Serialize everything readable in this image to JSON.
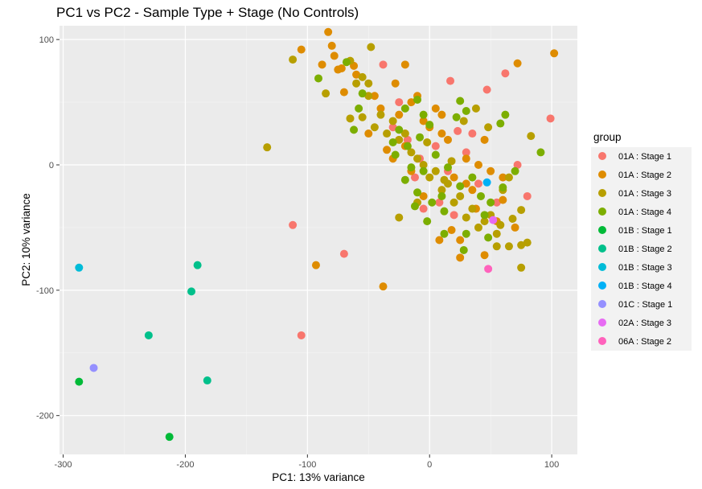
{
  "chart_data": {
    "type": "scatter",
    "title": "PC1 vs PC2 - Sample Type + Stage (No Controls)",
    "xlabel": "PC1: 13% variance",
    "ylabel": "PC2: 10% variance",
    "xlim": [
      -303,
      121
    ],
    "ylim": [
      -231,
      111
    ],
    "x_ticks": [
      -300,
      -200,
      -100,
      0,
      100
    ],
    "y_ticks": [
      -200,
      -100,
      0,
      100
    ],
    "x_tick_labels": [
      "-300",
      "-200",
      "-100",
      "0",
      "100"
    ],
    "y_tick_labels": [
      "-200",
      "-100",
      "0",
      "100"
    ],
    "grid": true,
    "legend_title": "group",
    "legend_position": "right",
    "series": [
      {
        "name": "01A : Stage 1",
        "color": "#F8766D",
        "points": [
          [
            -112,
            -48
          ],
          [
            -70,
            -71
          ],
          [
            -105,
            -136
          ],
          [
            -38,
            80
          ],
          [
            17,
            67
          ],
          [
            99,
            37
          ],
          [
            47,
            60
          ],
          [
            62,
            73
          ],
          [
            72,
            0
          ],
          [
            80,
            -25
          ],
          [
            23,
            27
          ],
          [
            -18,
            20
          ],
          [
            -8,
            5
          ],
          [
            30,
            10
          ],
          [
            8,
            -30
          ],
          [
            -25,
            50
          ],
          [
            40,
            -15
          ],
          [
            15,
            -5
          ],
          [
            -5,
            -35
          ],
          [
            55,
            -30
          ],
          [
            -30,
            30
          ],
          [
            35,
            25
          ],
          [
            5,
            15
          ],
          [
            -12,
            -10
          ],
          [
            20,
            -40
          ]
        ]
      },
      {
        "name": "01A : Stage 2",
        "color": "#DE8C00",
        "points": [
          [
            -83,
            106
          ],
          [
            -105,
            92
          ],
          [
            -80,
            95
          ],
          [
            -78,
            87
          ],
          [
            -75,
            76
          ],
          [
            -72,
            77
          ],
          [
            -88,
            80
          ],
          [
            -62,
            79
          ],
          [
            -20,
            80
          ],
          [
            -28,
            65
          ],
          [
            -60,
            72
          ],
          [
            -70,
            58
          ],
          [
            -45,
            55
          ],
          [
            -40,
            45
          ],
          [
            -25,
            40
          ],
          [
            -15,
            50
          ],
          [
            -10,
            55
          ],
          [
            5,
            45
          ],
          [
            10,
            40
          ],
          [
            -5,
            35
          ],
          [
            0,
            30
          ],
          [
            10,
            25
          ],
          [
            15,
            20
          ],
          [
            -20,
            15
          ],
          [
            -35,
            12
          ],
          [
            -15,
            -5
          ],
          [
            20,
            -10
          ],
          [
            30,
            -15
          ],
          [
            40,
            0
          ],
          [
            50,
            -5
          ],
          [
            60,
            -10
          ],
          [
            45,
            20
          ],
          [
            72,
            81
          ],
          [
            102,
            89
          ],
          [
            55,
            -45
          ],
          [
            70,
            -50
          ],
          [
            -38,
            -97
          ],
          [
            -93,
            -80
          ],
          [
            45,
            -72
          ],
          [
            25,
            -74
          ],
          [
            -50,
            25
          ],
          [
            -30,
            5
          ],
          [
            60,
            -28
          ],
          [
            25,
            -60
          ],
          [
            35,
            -20
          ],
          [
            8,
            -60
          ],
          [
            18,
            -52
          ],
          [
            -5,
            -25
          ],
          [
            30,
            5
          ],
          [
            38,
            -35
          ]
        ]
      },
      {
        "name": "01A : Stage 3",
        "color": "#B79F00",
        "points": [
          [
            -112,
            84
          ],
          [
            -48,
            94
          ],
          [
            -133,
            14
          ],
          [
            -55,
            70
          ],
          [
            -50,
            65
          ],
          [
            -65,
            83
          ],
          [
            -85,
            57
          ],
          [
            -65,
            37
          ],
          [
            -55,
            38
          ],
          [
            -45,
            30
          ],
          [
            -35,
            25
          ],
          [
            -25,
            20
          ],
          [
            -15,
            10
          ],
          [
            -5,
            0
          ],
          [
            5,
            -5
          ],
          [
            15,
            -15
          ],
          [
            25,
            -25
          ],
          [
            35,
            -35
          ],
          [
            45,
            -45
          ],
          [
            55,
            -55
          ],
          [
            65,
            -65
          ],
          [
            75,
            -64
          ],
          [
            80,
            -62
          ],
          [
            75,
            -82
          ],
          [
            75,
            -36
          ],
          [
            65,
            -10
          ],
          [
            60,
            -20
          ],
          [
            50,
            -40
          ],
          [
            40,
            -50
          ],
          [
            30,
            -42
          ],
          [
            20,
            -30
          ],
          [
            10,
            -20
          ],
          [
            0,
            -10
          ],
          [
            -10,
            5
          ],
          [
            -20,
            25
          ],
          [
            -30,
            35
          ],
          [
            -40,
            40
          ],
          [
            -50,
            55
          ],
          [
            -60,
            65
          ],
          [
            83,
            23
          ],
          [
            68,
            -43
          ],
          [
            55,
            -65
          ],
          [
            -25,
            -42
          ],
          [
            -10,
            -30
          ],
          [
            12,
            -12
          ],
          [
            28,
            35
          ],
          [
            38,
            45
          ],
          [
            48,
            30
          ],
          [
            -2,
            18
          ],
          [
            18,
            3
          ],
          [
            58,
            -48
          ]
        ]
      },
      {
        "name": "01A : Stage 4",
        "color": "#7CAE00",
        "points": [
          [
            -91,
            69
          ],
          [
            -68,
            82
          ],
          [
            -62,
            28
          ],
          [
            -58,
            45
          ],
          [
            -55,
            57
          ],
          [
            -20,
            45
          ],
          [
            -10,
            52
          ],
          [
            -5,
            40
          ],
          [
            0,
            32
          ],
          [
            22,
            38
          ],
          [
            25,
            51
          ],
          [
            30,
            43
          ],
          [
            62,
            40
          ],
          [
            58,
            33
          ],
          [
            91,
            10
          ],
          [
            50,
            -30
          ],
          [
            45,
            -40
          ],
          [
            30,
            -55
          ],
          [
            -10,
            -22
          ],
          [
            -5,
            -5
          ],
          [
            -15,
            -2
          ],
          [
            10,
            -25
          ],
          [
            -12,
            -33
          ],
          [
            -18,
            15
          ],
          [
            -8,
            22
          ],
          [
            -25,
            28
          ],
          [
            -30,
            18
          ],
          [
            12,
            -37
          ],
          [
            25,
            -17
          ],
          [
            5,
            8
          ],
          [
            15,
            -2
          ],
          [
            35,
            -10
          ],
          [
            42,
            -25
          ],
          [
            60,
            -18
          ],
          [
            70,
            -5
          ],
          [
            -28,
            8
          ],
          [
            -2,
            -45
          ],
          [
            12,
            -55
          ],
          [
            28,
            -68
          ],
          [
            48,
            -58
          ],
          [
            -20,
            -12
          ],
          [
            2,
            -30
          ]
        ]
      },
      {
        "name": "01B : Stage 1",
        "color": "#00BA38",
        "points": [
          [
            -287,
            -173
          ],
          [
            -213,
            -217
          ]
        ]
      },
      {
        "name": "01B : Stage 2",
        "color": "#00C08B",
        "points": [
          [
            -190,
            -80
          ],
          [
            -195,
            -101
          ],
          [
            -230,
            -136
          ],
          [
            -182,
            -172
          ]
        ]
      },
      {
        "name": "01B : Stage 3",
        "color": "#00BCD8",
        "points": [
          [
            -287,
            -82
          ]
        ]
      },
      {
        "name": "01B : Stage 4",
        "color": "#00B0F6",
        "points": [
          [
            47,
            -14
          ]
        ]
      },
      {
        "name": "01C : Stage 1",
        "color": "#9590FF",
        "points": [
          [
            -275,
            -162
          ]
        ]
      },
      {
        "name": "02A : Stage 3",
        "color": "#E76BF3",
        "points": [
          [
            52,
            -44
          ]
        ]
      },
      {
        "name": "06A : Stage 2",
        "color": "#FF62BC",
        "points": [
          [
            48,
            -83
          ]
        ]
      }
    ]
  }
}
